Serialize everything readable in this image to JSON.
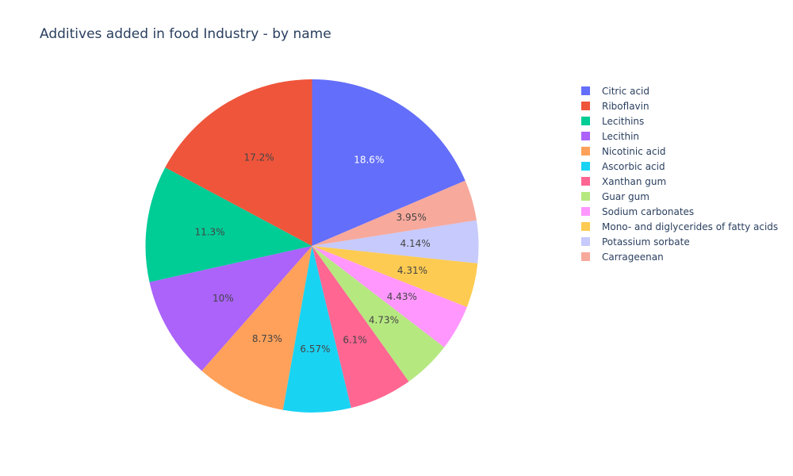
{
  "chart_data": {
    "type": "pie",
    "title": "Additives added in food Industry - by name",
    "start_angle_deg": 90,
    "direction": "clockwise",
    "legend_position": "right",
    "slices": [
      {
        "label": "Citric acid",
        "value": 18.6,
        "text": "18.6%",
        "color": "#636efa",
        "text_color": "#ffffff"
      },
      {
        "label": "Riboflavin",
        "value": 17.2,
        "text": "17.2%",
        "color": "#EF553B",
        "text_color": "#444444"
      },
      {
        "label": "Lecithins",
        "value": 11.3,
        "text": "11.3%",
        "color": "#00cc96",
        "text_color": "#444444"
      },
      {
        "label": "Lecithin",
        "value": 10.0,
        "text": "10%",
        "color": "#ab63fa",
        "text_color": "#444444"
      },
      {
        "label": "Nicotinic acid",
        "value": 8.73,
        "text": "8.73%",
        "color": "#FFA15A",
        "text_color": "#444444"
      },
      {
        "label": "Ascorbic acid",
        "value": 6.57,
        "text": "6.57%",
        "color": "#19d3f3",
        "text_color": "#444444"
      },
      {
        "label": "Xanthan gum",
        "value": 6.1,
        "text": "6.1%",
        "color": "#FF6692",
        "text_color": "#444444"
      },
      {
        "label": "Guar gum",
        "value": 4.73,
        "text": "4.73%",
        "color": "#B6E880",
        "text_color": "#444444"
      },
      {
        "label": "Sodium carbonates",
        "value": 4.43,
        "text": "4.43%",
        "color": "#FF97FF",
        "text_color": "#444444"
      },
      {
        "label": "Mono- and diglycerides of fatty acids",
        "value": 4.31,
        "text": "4.31%",
        "color": "#FECB52",
        "text_color": "#444444"
      },
      {
        "label": "Potassium sorbate",
        "value": 4.14,
        "text": "4.14%",
        "color": "#c6cafc",
        "text_color": "#444444"
      },
      {
        "label": "Carrageenan",
        "value": 3.95,
        "text": "3.95%",
        "color": "#f7a99c",
        "text_color": "#444444"
      }
    ],
    "slice_order": [
      "Citric acid",
      "Carrageenan",
      "Potassium sorbate",
      "Mono- and diglycerides of fatty acids",
      "Sodium carbonates",
      "Guar gum",
      "Xanthan gum",
      "Ascorbic acid",
      "Nicotinic acid",
      "Lecithin",
      "Lecithins",
      "Riboflavin"
    ]
  }
}
